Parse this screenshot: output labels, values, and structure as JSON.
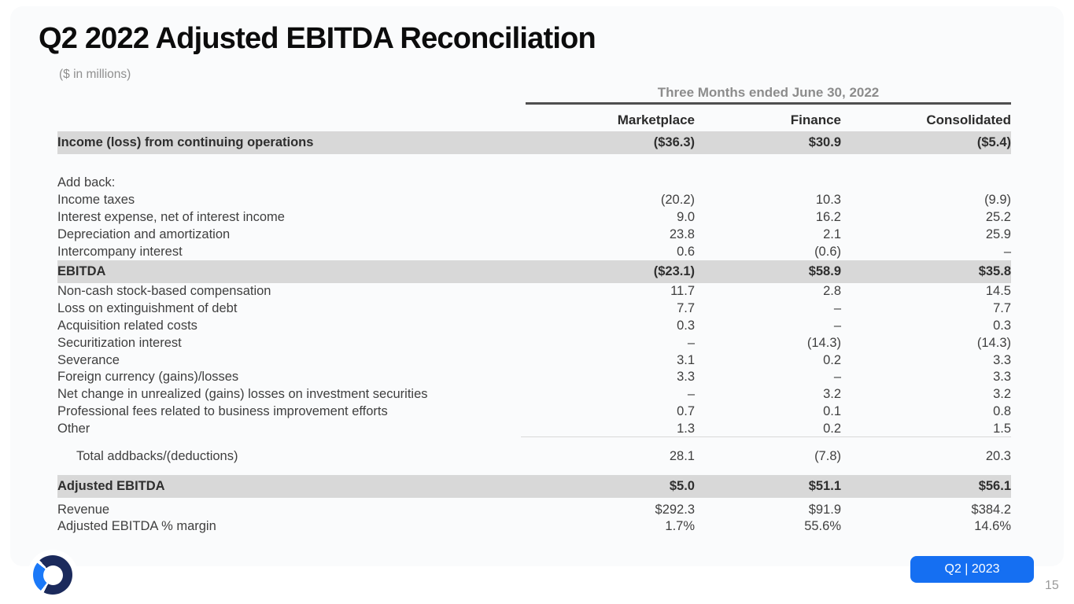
{
  "title": "Q2 2022 Adjusted EBITDA Reconciliation",
  "subtitle": "($ in millions)",
  "table": {
    "period_header": "Three Months ended June 30, 2022",
    "columns": [
      "Marketplace",
      "Finance",
      "Consolidated"
    ],
    "rows": [
      {
        "label": "Income (loss) from continuing operations",
        "values": [
          "($36.3)",
          "$30.9",
          "($5.4)"
        ],
        "style": "highlight"
      },
      {
        "label": "",
        "values": [
          "",
          "",
          ""
        ],
        "style": "spacer"
      },
      {
        "label": "Add back:",
        "values": [
          "",
          "",
          ""
        ],
        "style": "normal"
      },
      {
        "label": "Income taxes",
        "values": [
          "(20.2)",
          "10.3",
          "(9.9)"
        ],
        "style": "normal"
      },
      {
        "label": "Interest expense, net of interest income",
        "values": [
          "9.0",
          "16.2",
          "25.2"
        ],
        "style": "normal"
      },
      {
        "label": "Depreciation and amortization",
        "values": [
          "23.8",
          "2.1",
          "25.9"
        ],
        "style": "normal"
      },
      {
        "label": "Intercompany interest",
        "values": [
          "0.6",
          "(0.6)",
          "–"
        ],
        "style": "normal"
      },
      {
        "label": "EBITDA",
        "values": [
          "($23.1)",
          "$58.9",
          "$35.8"
        ],
        "style": "highlight"
      },
      {
        "label": "Non-cash stock-based compensation",
        "values": [
          "11.7",
          "2.8",
          "14.5"
        ],
        "style": "normal"
      },
      {
        "label": "Loss on extinguishment of debt",
        "values": [
          "7.7",
          "–",
          "7.7"
        ],
        "style": "normal"
      },
      {
        "label": "Acquisition related costs",
        "values": [
          "0.3",
          "–",
          "0.3"
        ],
        "style": "normal"
      },
      {
        "label": "Securitization interest",
        "values": [
          "–",
          "(14.3)",
          "(14.3)"
        ],
        "style": "normal"
      },
      {
        "label": "Severance",
        "values": [
          "3.1",
          "0.2",
          "3.3"
        ],
        "style": "normal"
      },
      {
        "label": "Foreign currency (gains)/losses",
        "values": [
          "3.3",
          "–",
          "3.3"
        ],
        "style": "normal"
      },
      {
        "label": "Net change in unrealized (gains) losses on investment securities",
        "values": [
          "–",
          "3.2",
          "3.2"
        ],
        "style": "normal"
      },
      {
        "label": "Professional fees related to business improvement efforts",
        "values": [
          "0.7",
          "0.1",
          "0.8"
        ],
        "style": "normal"
      },
      {
        "label": "Other",
        "values": [
          "1.3",
          "0.2",
          "1.5"
        ],
        "style": "rule"
      },
      {
        "label": "Total addbacks/(deductions)",
        "values": [
          "28.1",
          "(7.8)",
          "20.3"
        ],
        "style": "total"
      },
      {
        "label": "Adjusted EBITDA",
        "values": [
          "$5.0",
          "$51.1",
          "$56.1"
        ],
        "style": "highlight aebitda"
      },
      {
        "label": "Revenue",
        "values": [
          "$292.3",
          "$91.9",
          "$384.2"
        ],
        "style": "normal revenue"
      },
      {
        "label": "Adjusted EBITDA % margin",
        "values": [
          "1.7%",
          "55.6%",
          "14.6%"
        ],
        "style": "normal"
      }
    ]
  },
  "footer": {
    "badge_label": "Q2 | 2023",
    "page_number": "15",
    "logo": "oppfi-ring-logo"
  },
  "colors": {
    "accent_blue": "#156ff2",
    "logo_navy": "#1b2a5c",
    "logo_blue": "#1b79f8",
    "highlight_row_gray": "#d8d8d8",
    "period_rule_dark": "#4f4f4f"
  }
}
